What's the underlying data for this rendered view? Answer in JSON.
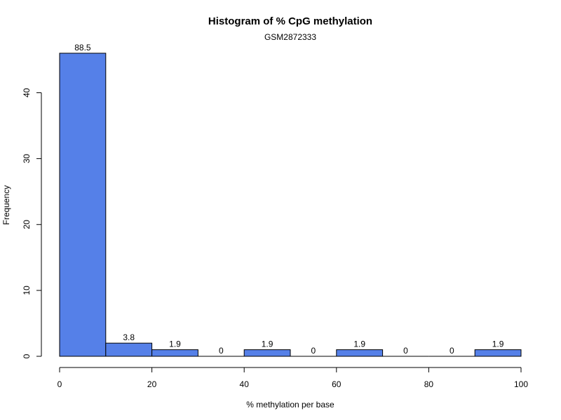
{
  "chart_data": {
    "type": "bar",
    "title": "Histogram of % CpG methylation",
    "subtitle": "GSM2872333",
    "xlabel": "% methylation per base",
    "ylabel": "Frequency",
    "bins": [
      {
        "start": 0,
        "end": 10,
        "value": 46,
        "label": "88.5"
      },
      {
        "start": 10,
        "end": 20,
        "value": 2,
        "label": "3.8"
      },
      {
        "start": 20,
        "end": 30,
        "value": 1,
        "label": "1.9"
      },
      {
        "start": 30,
        "end": 40,
        "value": 0,
        "label": "0"
      },
      {
        "start": 40,
        "end": 50,
        "value": 1,
        "label": "1.9"
      },
      {
        "start": 50,
        "end": 60,
        "value": 0,
        "label": "0"
      },
      {
        "start": 60,
        "end": 70,
        "value": 1,
        "label": "1.9"
      },
      {
        "start": 70,
        "end": 80,
        "value": 0,
        "label": "0"
      },
      {
        "start": 80,
        "end": 90,
        "value": 0,
        "label": "0"
      },
      {
        "start": 90,
        "end": 100,
        "value": 1,
        "label": "1.9"
      }
    ],
    "xlim": [
      0,
      100
    ],
    "ylim": [
      0,
      46
    ],
    "xticks": [
      0,
      20,
      40,
      60,
      80,
      100
    ],
    "yticks": [
      0,
      10,
      20,
      30,
      40
    ],
    "bar_color": "#5580e8",
    "grid": false
  }
}
